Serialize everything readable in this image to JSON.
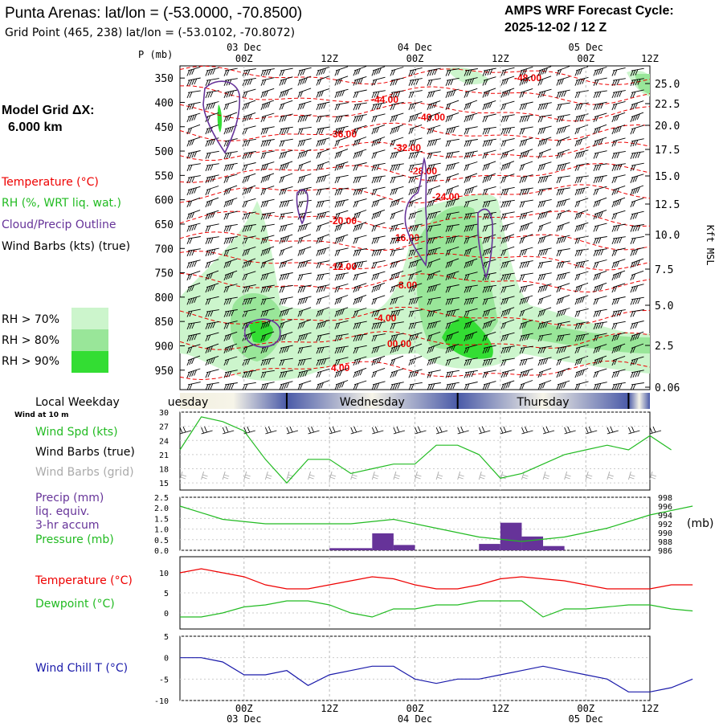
{
  "header": {
    "title": "Punta Arenas:  lat/lon = (-53.0000, -70.8500)",
    "subtitle": "Grid Point (465, 238) lat/lon = (-53.0102, -70.8072)",
    "cycle_label": "AMPS WRF Forecast Cycle:",
    "cycle_value": "2025-12-02 / 12  Z"
  },
  "left_legend": {
    "model_grid_label": "Model Grid ΔX:",
    "model_grid_value": "6.000 km",
    "temperature": "Temperature (°C)",
    "rh": "RH (%, WRT liq. wat.)",
    "cloud": "Cloud/Precip Outline",
    "wind": "Wind Barbs (kts) (true)",
    "rh_gt_70": "RH > 70%",
    "rh_gt_80": "RH > 80%",
    "rh_gt_90": "RH > 90%",
    "local_weekday": "Local Weekday",
    "wind_at_10m": "Wind at 10 m",
    "p_mb": "P (mb)",
    "kft_msl": "Kft MSL",
    "mb_unit": "(mb)"
  },
  "colors": {
    "temperature": "#ee0000",
    "rh_70": "#ccf5cc",
    "rh_80": "#99e699",
    "rh_90": "#33dd33",
    "cloud": "#663399",
    "wind_speed": "#22bb22",
    "precip": "#663399",
    "dewpoint": "#22bb22",
    "wind_chill": "#1a1aaa",
    "weekday_bar": "#4a5aa8"
  },
  "time_axis": {
    "top_labels": [
      "00Z",
      "12Z",
      "00Z",
      "12Z",
      "00Z",
      "12Z"
    ],
    "top_dates": [
      "03 Dec",
      "04 Dec",
      "05 Dec"
    ],
    "bottom_labels": [
      "00Z",
      "12Z",
      "00Z",
      "12Z",
      "00Z",
      "12Z"
    ],
    "bottom_dates": [
      "03 Dec",
      "04 Dec",
      "05 Dec"
    ],
    "weekdays": [
      "uesday",
      "Wednesday",
      "Thursday"
    ]
  },
  "chart_data": [
    {
      "type": "heatmap",
      "name": "cross-section",
      "title": "",
      "ylabel": "P (mb)",
      "y_ticks": [
        350,
        400,
        450,
        500,
        550,
        600,
        650,
        700,
        750,
        800,
        850,
        900,
        950
      ],
      "right_ticks": [
        "25.0",
        "22.5",
        "20.0",
        "17.5",
        "15.0",
        "12.5",
        "10.0",
        "7.5",
        "5.0",
        "2.5",
        "0.06"
      ],
      "right_label": "Kft MSL",
      "x_ticks": [
        "03 Dec 00Z",
        "12Z",
        "04 Dec 00Z",
        "12Z",
        "05 Dec 00Z",
        "12Z"
      ],
      "temperature_labels": [
        "-48.00",
        "-44.00",
        "-40.00",
        "-36.00",
        "-32.00",
        "-28.00",
        "-24.00",
        "-20.00",
        "-16.00",
        "-12.00",
        "-8.00",
        "-4.00",
        "00.00",
        "4.00"
      ]
    },
    {
      "type": "line",
      "name": "wind-speed",
      "ylabel": "Wind Spd (kts)",
      "y_ticks": [
        15,
        18,
        21,
        24,
        27,
        30
      ],
      "ylim": [
        13.5,
        30
      ],
      "series": [
        {
          "name": "Wind Spd (kts)",
          "x_hours": [
            -9,
            -6,
            -3,
            0,
            3,
            6,
            9,
            12,
            15,
            18,
            21,
            24,
            27,
            30,
            33,
            36,
            39,
            42,
            45,
            48,
            51,
            54,
            57,
            60
          ],
          "values": [
            22,
            29,
            28,
            26,
            20,
            15,
            20,
            20,
            17,
            18,
            19,
            19,
            23,
            23,
            21,
            16,
            17,
            19,
            21,
            22,
            23,
            22,
            25,
            22
          ]
        }
      ],
      "legend": [
        "Wind Spd (kts)",
        "Wind Barbs (true)",
        "Wind Barbs (grid)"
      ]
    },
    {
      "type": "bar",
      "name": "precip-pressure",
      "ylabel": "Precip (mm) liq. equiv. 3-hr accum",
      "y_ticks": [
        0.0,
        0.5,
        1.0,
        1.5,
        2.0,
        2.5
      ],
      "ylim": [
        0,
        2.5
      ],
      "right_ticks": [
        986,
        988,
        990,
        992,
        994,
        996,
        998
      ],
      "right_label": "(mb)",
      "precip": [
        {
          "x_start": 12,
          "x_end": 18,
          "value": 0.1
        },
        {
          "x_start": 18,
          "x_end": 21,
          "value": 0.8
        },
        {
          "x_start": 21,
          "x_end": 24,
          "value": 0.25
        },
        {
          "x_start": 33,
          "x_end": 36,
          "value": 0.3
        },
        {
          "x_start": 36,
          "x_end": 39,
          "value": 1.3
        },
        {
          "x_start": 39,
          "x_end": 42,
          "value": 0.65
        },
        {
          "x_start": 42,
          "x_end": 45,
          "value": 0.2
        }
      ],
      "pressure": {
        "x_hours": [
          -9,
          -3,
          3,
          9,
          15,
          21,
          27,
          33,
          39,
          45,
          51,
          57,
          63
        ],
        "values": [
          996,
          993,
          992,
          992,
          992,
          993,
          991,
          989,
          988,
          989,
          991,
          994,
          996
        ]
      },
      "legend": [
        "Precip (mm)",
        "liq. equiv.",
        "3-hr accum",
        "Pressure (mb)"
      ]
    },
    {
      "type": "line",
      "name": "temperature-dewpoint",
      "y_ticks": [
        0,
        5,
        10
      ],
      "ylim": [
        -4,
        14
      ],
      "series": [
        {
          "name": "Temperature (°C)",
          "x_hours": [
            -9,
            -6,
            -3,
            0,
            3,
            6,
            9,
            12,
            15,
            18,
            21,
            24,
            27,
            30,
            33,
            36,
            39,
            42,
            45,
            48,
            51,
            54,
            57,
            60,
            63
          ],
          "values": [
            10,
            11,
            10,
            9,
            7,
            6,
            6,
            7,
            8,
            9,
            8.5,
            7,
            6,
            6,
            7,
            8.5,
            9,
            8.5,
            8,
            7,
            6,
            6,
            6,
            7,
            7
          ]
        },
        {
          "name": "Dewpoint (°C)",
          "x_hours": [
            -9,
            -6,
            -3,
            0,
            3,
            6,
            9,
            12,
            15,
            18,
            21,
            24,
            27,
            30,
            33,
            36,
            39,
            42,
            45,
            48,
            51,
            54,
            57,
            60,
            63
          ],
          "values": [
            -1,
            -1,
            0,
            1.5,
            2,
            3,
            3,
            2,
            0,
            -1,
            1,
            1,
            2,
            2,
            3,
            3,
            3,
            -1,
            1,
            1,
            1.5,
            2,
            2,
            1,
            0.5
          ]
        }
      ],
      "legend": [
        "Temperature (°C)",
        "Dewpoint (°C)"
      ]
    },
    {
      "type": "line",
      "name": "wind-chill",
      "y_ticks": [
        5,
        0,
        -5,
        -10
      ],
      "ylim": [
        -10,
        5
      ],
      "series": [
        {
          "name": "Wind Chill T (°C)",
          "x_hours": [
            -9,
            -6,
            -3,
            0,
            3,
            6,
            9,
            12,
            15,
            18,
            21,
            24,
            27,
            30,
            33,
            36,
            39,
            42,
            45,
            48,
            51,
            54,
            57,
            60,
            63
          ],
          "values": [
            0,
            0,
            -1,
            -4,
            -4,
            -3,
            -6.5,
            -4,
            -3,
            -2,
            -2,
            -5,
            -6,
            -5,
            -5,
            -4,
            -3,
            -2,
            -3,
            -4,
            -5,
            -8,
            -8,
            -7,
            -5
          ]
        }
      ],
      "legend": [
        "Wind Chill T (°C)"
      ]
    }
  ]
}
